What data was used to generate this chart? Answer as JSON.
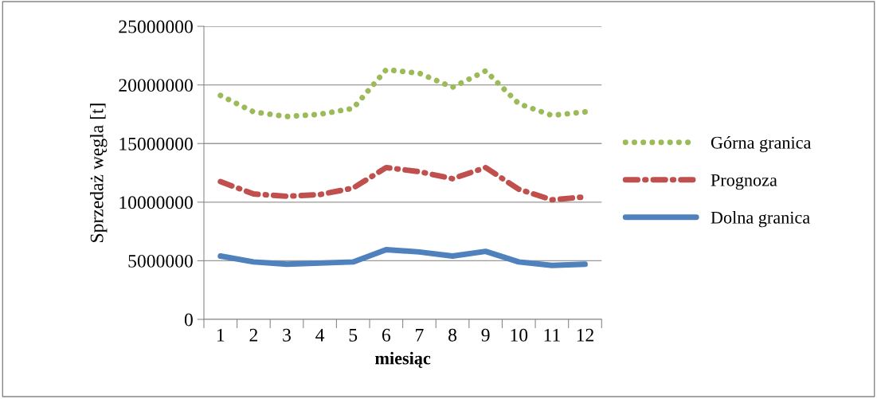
{
  "chart_data": {
    "type": "line",
    "xlabel": "miesiąc",
    "ylabel": "Sprzedaż węgla [t]",
    "categories": [
      "1",
      "2",
      "3",
      "4",
      "5",
      "6",
      "7",
      "8",
      "9",
      "10",
      "11",
      "12"
    ],
    "series": [
      {
        "name": "Górna granica",
        "color": "#9bbb59",
        "line_style": "dotted",
        "values": [
          19100000,
          17700000,
          17300000,
          17500000,
          18000000,
          21300000,
          21000000,
          19800000,
          21200000,
          18400000,
          17400000,
          17700000
        ]
      },
      {
        "name": "Prognoza",
        "color": "#c0504d",
        "line_style": "dashed",
        "values": [
          11750000,
          10700000,
          10500000,
          10650000,
          11200000,
          12950000,
          12600000,
          12000000,
          12950000,
          11100000,
          10200000,
          10450000
        ]
      },
      {
        "name": "Dolna granica",
        "color": "#4f81bd",
        "line_style": "solid",
        "values": [
          5400000,
          4900000,
          4700000,
          4800000,
          4900000,
          5950000,
          5750000,
          5400000,
          5800000,
          4900000,
          4600000,
          4700000
        ]
      }
    ],
    "ylim": [
      0,
      25000000
    ],
    "yticks": [
      0,
      5000000,
      10000000,
      15000000,
      20000000,
      25000000
    ],
    "grid": "y",
    "legend": "right",
    "marker": "none"
  }
}
